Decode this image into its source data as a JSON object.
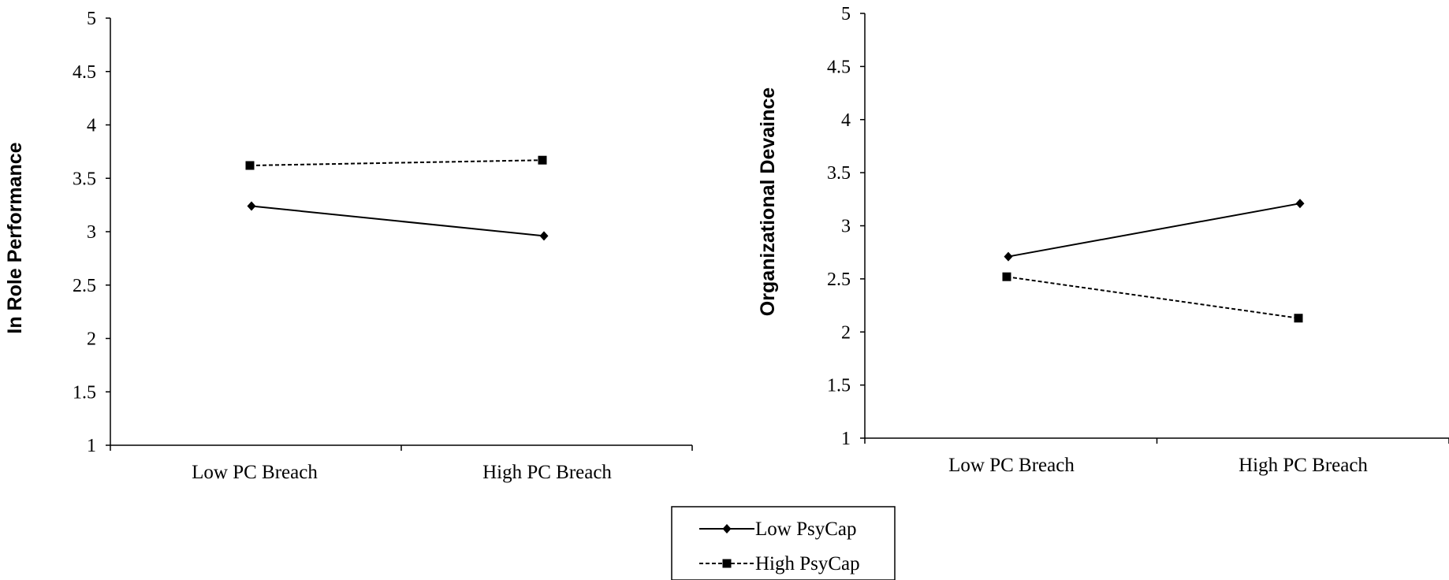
{
  "chart_data": [
    {
      "type": "line",
      "title": "",
      "xlabel": "",
      "ylabel": "In Role Performance",
      "categories": [
        "Low PC Breach",
        "High PC Breach"
      ],
      "ylim": [
        1,
        5
      ],
      "yticks": [
        "1",
        "1.5",
        "2",
        "2.5",
        "3",
        "3.5",
        "4",
        "4.5",
        "5"
      ],
      "grid": false,
      "series": [
        {
          "name": "Low PsyCap",
          "values": [
            3.24,
            2.96
          ],
          "marker": "diamond",
          "line": "solid"
        },
        {
          "name": "High PsyCap",
          "values": [
            3.62,
            3.67
          ],
          "marker": "square",
          "line": "dashed"
        }
      ]
    },
    {
      "type": "line",
      "title": "",
      "xlabel": "",
      "ylabel": "Organizational Devaince",
      "categories": [
        "Low PC Breach",
        "High PC Breach"
      ],
      "ylim": [
        1,
        5
      ],
      "yticks": [
        "1",
        "1.5",
        "2",
        "2.5",
        "3",
        "3.5",
        "4",
        "4.5",
        "5"
      ],
      "grid": false,
      "series": [
        {
          "name": "Low PsyCap",
          "values": [
            2.71,
            3.21
          ],
          "marker": "diamond",
          "line": "solid"
        },
        {
          "name": "High PsyCap",
          "values": [
            2.52,
            2.13
          ],
          "marker": "square",
          "line": "dashed"
        }
      ]
    }
  ],
  "legend": {
    "placement": "bottom-center",
    "items": [
      {
        "label": "Low PsyCap",
        "marker": "diamond",
        "line": "solid"
      },
      {
        "label": "High PsyCap",
        "marker": "square",
        "line": "dashed"
      }
    ]
  },
  "colors": {
    "line": "#000000",
    "background": "#ffffff"
  }
}
